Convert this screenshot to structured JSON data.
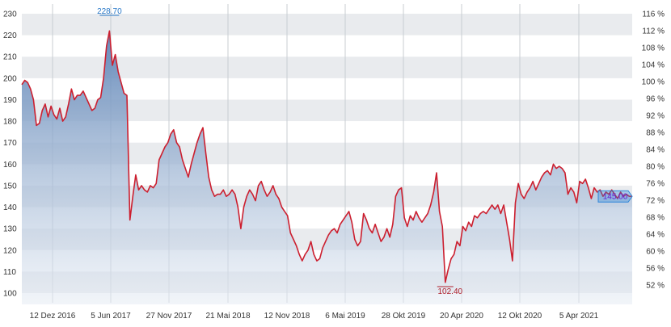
{
  "chart_data": {
    "type": "area",
    "title": "",
    "xlabel": "",
    "ylabel": "",
    "ylim": [
      100,
      230
    ],
    "y_ticks": [
      100,
      110,
      120,
      130,
      140,
      150,
      160,
      170,
      180,
      190,
      200,
      210,
      220,
      230
    ],
    "y2_ticks": [
      "52 %",
      "56 %",
      "60 %",
      "64 %",
      "68 %",
      "72 %",
      "76 %",
      "80 %",
      "84 %",
      "88 %",
      "92 %",
      "96 %",
      "100 %",
      "104 %",
      "108 %",
      "112 %",
      "116 %"
    ],
    "x_tick_labels": [
      "12 Dez 2016",
      "5 Jun 2017",
      "27 Nov 2017",
      "21 Mai 2018",
      "12 Nov 2018",
      "6 Mai 2019",
      "28 Okt 2019",
      "20 Apr 2020",
      "12 Okt 2020",
      "5 Apr 2021"
    ],
    "grid": true,
    "colors": {
      "line": "#cc1f2f",
      "fill_top": "#5b82b5",
      "fill_bottom": "#e6ecf4",
      "band": "#e9ebee",
      "max_label": "#2878c8",
      "min_label": "#b0202c",
      "last_label": "#6a1ad1",
      "last_box": "#2e86d9"
    },
    "annotations": {
      "max": "228.70",
      "min": "102.40",
      "last": "145.00"
    },
    "series": [
      {
        "values": [
          197,
          199,
          198,
          195,
          190,
          178,
          179,
          185,
          188,
          182,
          187,
          183,
          181,
          186,
          180,
          182,
          188,
          195,
          190,
          192,
          192,
          194,
          191,
          188,
          185,
          186,
          190,
          191,
          200,
          215,
          222,
          206,
          211,
          203,
          198,
          193,
          192,
          134,
          145,
          155,
          148,
          150,
          148,
          147,
          150,
          149,
          151,
          162,
          165,
          168,
          170,
          174,
          176,
          170,
          168,
          162,
          158,
          154,
          160,
          165,
          170,
          174,
          177,
          165,
          154,
          148,
          145,
          146,
          146,
          148,
          145,
          146,
          148,
          146,
          140,
          130,
          140,
          145,
          148,
          146,
          143,
          150,
          152,
          148,
          145,
          147,
          150,
          146,
          144,
          140,
          138,
          136,
          128,
          125,
          122,
          118,
          115,
          118,
          120,
          124,
          118,
          115,
          116,
          121,
          124,
          127,
          129,
          130,
          128,
          132,
          134,
          136,
          138,
          133,
          125,
          122,
          124,
          137,
          134,
          130,
          128,
          132,
          128,
          124,
          126,
          130,
          126,
          132,
          145,
          148,
          149,
          135,
          131,
          136,
          134,
          138,
          135,
          133,
          135,
          137,
          141,
          147,
          156,
          138,
          131,
          105,
          111,
          116,
          118,
          124,
          122,
          131,
          129,
          133,
          131,
          136,
          135,
          137,
          138,
          137,
          139,
          141,
          139,
          141,
          137,
          141,
          133,
          125,
          115,
          142,
          151,
          146,
          144,
          147,
          149,
          152,
          148,
          151,
          154,
          156,
          157,
          155,
          160,
          158,
          159,
          158,
          156,
          146,
          149,
          147,
          142,
          152,
          151,
          153,
          149,
          144,
          149,
          147,
          148,
          145,
          147,
          146,
          148,
          146,
          144,
          147,
          145,
          146,
          145,
          145
        ]
      }
    ]
  }
}
